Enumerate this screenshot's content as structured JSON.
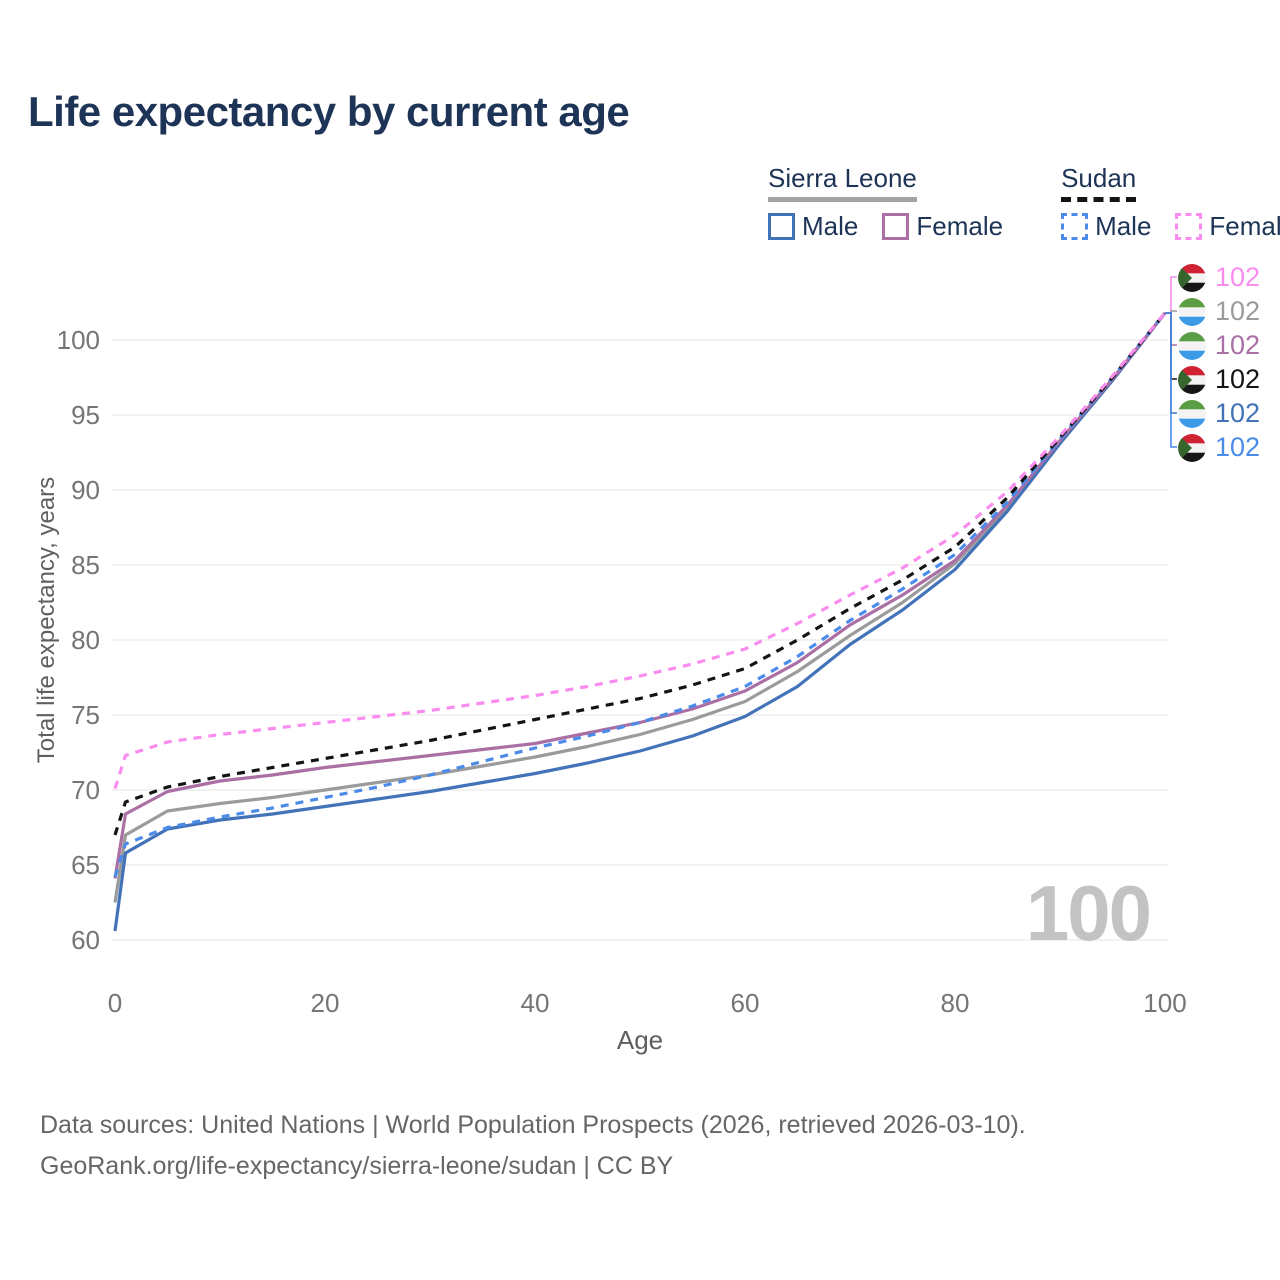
{
  "title": "Life expectancy by current age",
  "legend": {
    "groups": [
      {
        "label": "Sierra Leone",
        "line_style": "solid",
        "underline_color": "#a3a3a3",
        "items": [
          {
            "label": "Male",
            "color": "#4273b8",
            "dashed": false
          },
          {
            "label": "Female",
            "color": "#aa6fa4",
            "dashed": false
          }
        ]
      },
      {
        "label": "Sudan",
        "line_style": "dashed",
        "underline_color": "#141414",
        "items": [
          {
            "label": "Male",
            "color": "#4b8bea",
            "dashed": true
          },
          {
            "label": "Female",
            "color": "#fa8cf0",
            "dashed": true
          }
        ]
      }
    ]
  },
  "chart_data": {
    "type": "line",
    "title": "Life expectancy by current age",
    "xlabel": "Age",
    "ylabel": "Total life expectancy, years",
    "xticks": [
      0,
      20,
      40,
      60,
      80,
      100
    ],
    "yticks": [
      60,
      65,
      70,
      75,
      80,
      85,
      90,
      95,
      100
    ],
    "xlim": [
      0,
      100
    ],
    "ylim": [
      58.5,
      104
    ],
    "grid": "horizontal",
    "x": [
      0,
      1,
      5,
      10,
      15,
      20,
      25,
      30,
      35,
      40,
      45,
      50,
      55,
      60,
      65,
      70,
      75,
      80,
      85,
      90,
      95,
      100
    ],
    "series": [
      {
        "name": "Sierra Leone",
        "country": "Sierra Leone",
        "sex": "Both",
        "color": "#9b9b9b",
        "dashed": false,
        "values": [
          62.5,
          67.0,
          68.6,
          69.1,
          69.5,
          70.0,
          70.5,
          71.0,
          71.6,
          72.2,
          72.9,
          73.7,
          74.7,
          75.9,
          77.9,
          80.3,
          82.5,
          85.1,
          88.8,
          93.2,
          97.4,
          101.8
        ]
      },
      {
        "name": "Sierra Leone Male",
        "country": "Sierra Leone",
        "sex": "Male",
        "color": "#4273b8",
        "dashed": false,
        "values": [
          60.6,
          65.8,
          67.4,
          68.0,
          68.4,
          68.9,
          69.4,
          69.9,
          70.5,
          71.1,
          71.8,
          72.6,
          73.6,
          74.9,
          76.9,
          79.7,
          82.0,
          84.7,
          88.6,
          93.1,
          97.3,
          101.8
        ]
      },
      {
        "name": "Sierra Leone Female",
        "country": "Sierra Leone",
        "sex": "Female",
        "color": "#aa6fa4",
        "dashed": false,
        "values": [
          64.1,
          68.4,
          69.9,
          70.6,
          71.0,
          71.5,
          71.9,
          72.3,
          72.7,
          73.1,
          73.8,
          74.5,
          75.4,
          76.6,
          78.5,
          81.0,
          83.0,
          85.3,
          89.0,
          93.3,
          97.4,
          101.8
        ]
      },
      {
        "name": "Sudan Male",
        "country": "Sudan",
        "sex": "Male",
        "color": "#4b8bea",
        "dashed": true,
        "values": [
          64.2,
          66.4,
          67.5,
          68.2,
          68.8,
          69.5,
          70.2,
          71.0,
          71.9,
          72.8,
          73.6,
          74.5,
          75.6,
          76.9,
          78.9,
          81.3,
          83.4,
          85.7,
          89.2,
          93.4,
          97.5,
          101.8
        ]
      },
      {
        "name": "Sudan",
        "country": "Sudan",
        "sex": "Both",
        "color": "#141414",
        "dashed": true,
        "values": [
          67.0,
          69.2,
          70.2,
          70.9,
          71.5,
          72.1,
          72.7,
          73.3,
          74.0,
          74.7,
          75.4,
          76.1,
          77.0,
          78.1,
          80.0,
          82.1,
          84.0,
          86.2,
          89.5,
          93.5,
          97.5,
          101.8
        ]
      },
      {
        "name": "Sudan Female",
        "country": "Sudan",
        "sex": "Female",
        "color": "#fa8cf0",
        "dashed": true,
        "values": [
          70.1,
          72.3,
          73.2,
          73.7,
          74.1,
          74.5,
          74.9,
          75.3,
          75.8,
          76.3,
          76.9,
          77.6,
          78.4,
          79.4,
          81.1,
          83.0,
          84.8,
          87.0,
          89.9,
          93.6,
          97.6,
          101.8
        ]
      }
    ],
    "end_labels": [
      {
        "value": "102",
        "series": "Sudan Female",
        "flag": "sudan",
        "color": "#fa8cf0"
      },
      {
        "value": "102",
        "series": "Sierra Leone",
        "flag": "sierra-leone",
        "color": "#9b9b9b"
      },
      {
        "value": "102",
        "series": "Sierra Leone Female",
        "flag": "sierra-leone",
        "color": "#aa6fa4"
      },
      {
        "value": "102",
        "series": "Sudan",
        "flag": "sudan",
        "color": "#141414"
      },
      {
        "value": "102",
        "series": "Sierra Leone Male",
        "flag": "sierra-leone",
        "color": "#4273b8"
      },
      {
        "value": "102",
        "series": "Sudan Male",
        "flag": "sudan",
        "color": "#4b8bea"
      }
    ]
  },
  "flags": {
    "sudan": {
      "red": "#cf2233",
      "white": "#f4f4f4",
      "black": "#161616",
      "green": "#36662e"
    },
    "sierra-leone": {
      "green": "#5b9e46",
      "white": "#f4f4f4",
      "blue": "#3b9ae8"
    }
  },
  "watermark": "100",
  "footer": {
    "line1": "Data sources: United Nations | World Population Prospects (2026, retrieved 2026-03-10).",
    "line2": "GeoRank.org/life-expectancy/sierra-leone/sudan | CC BY"
  }
}
